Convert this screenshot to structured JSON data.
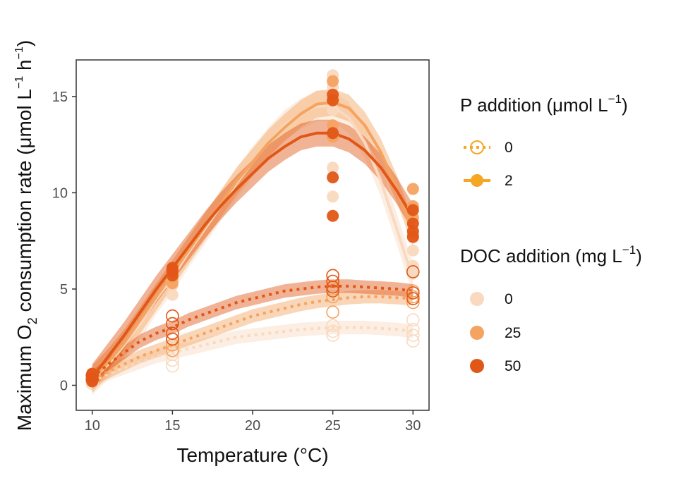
{
  "chart_data": {
    "type": "scatter",
    "xlabel_prefix": "Temperature (",
    "xlabel_unit": "°C",
    "xlabel_suffix": ")",
    "ylabel_prefix": "Maximum O",
    "ylabel_sub": "2",
    "ylabel_mid": " consumption rate (μmol L",
    "ylabel_sup1": "−1",
    "ylabel_h": " h",
    "ylabel_sup2": "−1",
    "ylabel_close": ")",
    "xlim": [
      9,
      31
    ],
    "ylim": [
      -1.3,
      16.9
    ],
    "x_ticks": [
      "10",
      "15",
      "20",
      "25",
      "30"
    ],
    "x_tick_values": [
      10,
      15,
      20,
      25,
      30
    ],
    "y_ticks": [
      "0",
      "5",
      "10",
      "15"
    ],
    "y_tick_values": [
      0,
      5,
      10,
      15
    ],
    "grid": false,
    "colors": {
      "doc0": "#f9d9bf",
      "doc25": "#f4a361",
      "doc50": "#e15717",
      "legend_p": "#f5a623",
      "axis": "#333333"
    },
    "legend_position": "right",
    "legend_p": {
      "title_main": "P addition (μmol L",
      "title_sup": "−1",
      "title_close": ")",
      "entries": [
        {
          "label": "0",
          "style": "dotted-open"
        },
        {
          "label": "2",
          "style": "solid-filled"
        }
      ]
    },
    "legend_doc": {
      "title_main": "DOC addition (mg L",
      "title_sup": "−1",
      "title_close": ")",
      "entries": [
        {
          "label": "0",
          "color_key": "doc0"
        },
        {
          "label": "25",
          "color_key": "doc25"
        },
        {
          "label": "50",
          "color_key": "doc50"
        }
      ]
    },
    "series": [
      {
        "name": "P2 DOC0",
        "p": 2,
        "doc": 0,
        "color_key": "doc0",
        "fit": {
          "x": [
            10,
            11,
            12,
            13,
            14,
            15,
            16,
            17,
            18,
            19,
            20,
            21,
            22,
            23,
            24,
            25,
            26,
            27,
            28,
            29,
            30
          ],
          "y": [
            0.3,
            1.1,
            2.1,
            3.2,
            4.5,
            5.6,
            6.9,
            8.1,
            9.3,
            10.5,
            11.6,
            12.6,
            13.5,
            14.1,
            14.5,
            14.5,
            13.9,
            12.6,
            10.6,
            8.1,
            5.5
          ],
          "se": 0.8
        },
        "points": [
          [
            10,
            0.3
          ],
          [
            10,
            0.5
          ],
          [
            10,
            0.2
          ],
          [
            15,
            5.4
          ],
          [
            15,
            5.7
          ],
          [
            15,
            4.7
          ],
          [
            15,
            5.2
          ],
          [
            25,
            16.1
          ],
          [
            25,
            15.5
          ],
          [
            25,
            11.3
          ],
          [
            25,
            9.8
          ],
          [
            25,
            14.3
          ],
          [
            30,
            7.0
          ],
          [
            30,
            6.2
          ],
          [
            30,
            7.8
          ],
          [
            30,
            5.8
          ]
        ]
      },
      {
        "name": "P2 DOC25",
        "p": 2,
        "doc": 25,
        "color_key": "doc25",
        "fit": {
          "x": [
            10,
            11,
            12,
            13,
            14,
            15,
            16,
            17,
            18,
            19,
            20,
            21,
            22,
            23,
            24,
            25,
            26,
            27,
            28,
            29,
            30
          ],
          "y": [
            0.3,
            1.2,
            2.2,
            3.4,
            4.6,
            5.8,
            7.0,
            8.2,
            9.4,
            10.6,
            11.6,
            12.6,
            13.4,
            14.1,
            14.6,
            14.7,
            14.4,
            13.5,
            12.1,
            10.2,
            7.9
          ],
          "se": 0.7
        },
        "points": [
          [
            10,
            0.4
          ],
          [
            10,
            0.6
          ],
          [
            10,
            0.3
          ],
          [
            15,
            5.6
          ],
          [
            15,
            5.9
          ],
          [
            15,
            5.3
          ],
          [
            25,
            15.8
          ],
          [
            25,
            14.8
          ],
          [
            25,
            12.9
          ],
          [
            25,
            13.5
          ],
          [
            30,
            10.2
          ],
          [
            30,
            9.3
          ],
          [
            30,
            8.7
          ],
          [
            30,
            7.8
          ]
        ]
      },
      {
        "name": "P2 DOC50",
        "p": 2,
        "doc": 50,
        "color_key": "doc50",
        "fit": {
          "x": [
            10,
            11,
            12,
            13,
            14,
            15,
            16,
            17,
            18,
            19,
            20,
            21,
            22,
            23,
            24,
            25,
            26,
            27,
            28,
            29,
            30
          ],
          "y": [
            0.4,
            1.5,
            2.6,
            3.8,
            5.0,
            6.1,
            7.2,
            8.3,
            9.3,
            10.2,
            11.0,
            11.8,
            12.4,
            12.9,
            13.1,
            13.1,
            12.8,
            12.2,
            11.3,
            10.1,
            8.7
          ],
          "se": 0.7
        },
        "points": [
          [
            10,
            0.4
          ],
          [
            10,
            0.6
          ],
          [
            10,
            0.2
          ],
          [
            15,
            6.1
          ],
          [
            15,
            5.9
          ],
          [
            15,
            5.7
          ],
          [
            15,
            6.0
          ],
          [
            25,
            15.1
          ],
          [
            25,
            14.8
          ],
          [
            25,
            13.1
          ],
          [
            25,
            10.8
          ],
          [
            25,
            8.8
          ],
          [
            30,
            9.1
          ],
          [
            30,
            8.4
          ],
          [
            30,
            7.7
          ],
          [
            30,
            8.0
          ]
        ]
      },
      {
        "name": "P0 DOC0",
        "p": 0,
        "doc": 0,
        "color_key": "doc0",
        "fit": {
          "x": [
            10,
            11,
            12,
            13,
            14,
            15,
            16,
            17,
            18,
            19,
            20,
            21,
            22,
            23,
            24,
            25,
            26,
            27,
            28,
            29,
            30
          ],
          "y": [
            0.2,
            0.6,
            0.9,
            1.2,
            1.5,
            1.7,
            1.9,
            2.1,
            2.3,
            2.5,
            2.6,
            2.7,
            2.8,
            2.9,
            2.95,
            3.0,
            3.0,
            3.0,
            2.95,
            2.9,
            2.8
          ],
          "se": 0.35
        },
        "points": [
          [
            10,
            0.2
          ],
          [
            10,
            0.1
          ],
          [
            15,
            1.0
          ],
          [
            15,
            1.3
          ],
          [
            15,
            1.6
          ],
          [
            25,
            2.8
          ],
          [
            25,
            3.1
          ],
          [
            25,
            2.6
          ],
          [
            30,
            2.3
          ],
          [
            30,
            2.9
          ],
          [
            30,
            3.4
          ],
          [
            30,
            2.6
          ]
        ]
      },
      {
        "name": "P0 DOC25",
        "p": 0,
        "doc": 25,
        "color_key": "doc25",
        "fit": {
          "x": [
            10,
            11,
            12,
            13,
            14,
            15,
            16,
            17,
            18,
            19,
            20,
            21,
            22,
            23,
            24,
            25,
            26,
            27,
            28,
            29,
            30
          ],
          "y": [
            0.3,
            0.7,
            1.1,
            1.5,
            1.8,
            2.1,
            2.4,
            2.7,
            3.0,
            3.3,
            3.6,
            3.8,
            4.0,
            4.2,
            4.35,
            4.45,
            4.55,
            4.6,
            4.6,
            4.55,
            4.5
          ],
          "se": 0.35
        },
        "points": [
          [
            10,
            0.3
          ],
          [
            10,
            0.5
          ],
          [
            15,
            2.1
          ],
          [
            15,
            1.8
          ],
          [
            15,
            2.4
          ],
          [
            25,
            4.6
          ],
          [
            25,
            3.8
          ],
          [
            25,
            5.0
          ],
          [
            30,
            4.3
          ],
          [
            30,
            4.9
          ],
          [
            30,
            4.6
          ]
        ]
      },
      {
        "name": "P0 DOC50",
        "p": 0,
        "doc": 50,
        "color_key": "doc50",
        "fit": {
          "x": [
            10,
            11,
            12,
            13,
            14,
            15,
            16,
            17,
            18,
            19,
            20,
            21,
            22,
            23,
            24,
            25,
            26,
            27,
            28,
            29,
            30
          ],
          "y": [
            0.4,
            1.1,
            1.7,
            2.3,
            2.7,
            3.0,
            3.4,
            3.7,
            4.0,
            4.3,
            4.5,
            4.7,
            4.9,
            5.0,
            5.1,
            5.15,
            5.15,
            5.1,
            5.05,
            5.0,
            4.9
          ],
          "se": 0.35
        },
        "points": [
          [
            10,
            0.5
          ],
          [
            10,
            0.3
          ],
          [
            15,
            3.6
          ],
          [
            15,
            3.2
          ],
          [
            15,
            2.7
          ],
          [
            15,
            2.4
          ],
          [
            25,
            5.7
          ],
          [
            25,
            5.4
          ],
          [
            25,
            5.1
          ],
          [
            25,
            4.9
          ],
          [
            30,
            5.9
          ],
          [
            30,
            4.8
          ],
          [
            30,
            4.5
          ]
        ]
      }
    ]
  }
}
